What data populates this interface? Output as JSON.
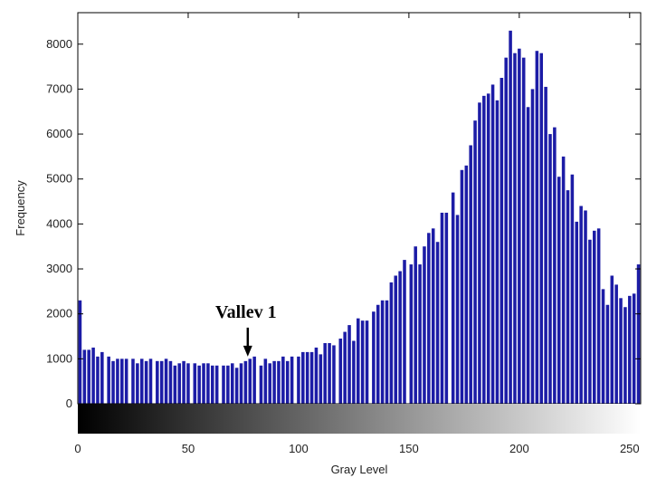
{
  "chart_data": {
    "type": "bar",
    "xlabel": "Gray Level",
    "ylabel": "Frequency",
    "xlim": [
      0,
      255
    ],
    "ylim": [
      0,
      8700
    ],
    "x_ticks": [
      0,
      50,
      100,
      150,
      200,
      250
    ],
    "x_tick_labels": [
      "0",
      "50",
      "100",
      "150",
      "200",
      "250"
    ],
    "y_ticks": [
      0,
      1000,
      2000,
      3000,
      4000,
      5000,
      6000,
      7000,
      8000
    ],
    "y_tick_labels": [
      "0",
      "1000",
      "2000",
      "3000",
      "4000",
      "5000",
      "6000",
      "7000",
      "8000"
    ],
    "grid": false,
    "bar_color": "#1c1ca6",
    "colorbar": "grayscale gradient from black (0) to white (255)",
    "annotation": {
      "text": "Vallev 1",
      "x": 77,
      "y": 1050
    },
    "points": [
      [
        1,
        2300
      ],
      [
        3,
        1200
      ],
      [
        5,
        1200
      ],
      [
        7,
        1250
      ],
      [
        9,
        1050
      ],
      [
        11,
        1150
      ],
      [
        14,
        1050
      ],
      [
        16,
        950
      ],
      [
        18,
        1000
      ],
      [
        20,
        1000
      ],
      [
        22,
        1000
      ],
      [
        25,
        1000
      ],
      [
        27,
        900
      ],
      [
        29,
        1000
      ],
      [
        31,
        950
      ],
      [
        33,
        1000
      ],
      [
        36,
        950
      ],
      [
        38,
        950
      ],
      [
        40,
        1000
      ],
      [
        42,
        950
      ],
      [
        44,
        850
      ],
      [
        46,
        900
      ],
      [
        48,
        950
      ],
      [
        50,
        900
      ],
      [
        53,
        900
      ],
      [
        55,
        850
      ],
      [
        57,
        900
      ],
      [
        59,
        900
      ],
      [
        61,
        850
      ],
      [
        63,
        850
      ],
      [
        66,
        850
      ],
      [
        68,
        850
      ],
      [
        70,
        900
      ],
      [
        72,
        800
      ],
      [
        74,
        900
      ],
      [
        76,
        950
      ],
      [
        78,
        1000
      ],
      [
        80,
        1050
      ],
      [
        83,
        850
      ],
      [
        85,
        1000
      ],
      [
        87,
        900
      ],
      [
        89,
        950
      ],
      [
        91,
        950
      ],
      [
        93,
        1050
      ],
      [
        95,
        950
      ],
      [
        97,
        1050
      ],
      [
        100,
        1050
      ],
      [
        102,
        1150
      ],
      [
        104,
        1150
      ],
      [
        106,
        1150
      ],
      [
        108,
        1250
      ],
      [
        110,
        1100
      ],
      [
        112,
        1350
      ],
      [
        114,
        1350
      ],
      [
        116,
        1300
      ],
      [
        119,
        1450
      ],
      [
        121,
        1600
      ],
      [
        123,
        1750
      ],
      [
        125,
        1400
      ],
      [
        127,
        1900
      ],
      [
        129,
        1850
      ],
      [
        131,
        1850
      ],
      [
        134,
        2050
      ],
      [
        136,
        2200
      ],
      [
        138,
        2300
      ],
      [
        140,
        2300
      ],
      [
        142,
        2700
      ],
      [
        144,
        2850
      ],
      [
        146,
        2950
      ],
      [
        148,
        3200
      ],
      [
        151,
        3100
      ],
      [
        153,
        3500
      ],
      [
        155,
        3100
      ],
      [
        157,
        3500
      ],
      [
        159,
        3800
      ],
      [
        161,
        3900
      ],
      [
        163,
        3600
      ],
      [
        165,
        4250
      ],
      [
        167,
        4250
      ],
      [
        170,
        4700
      ],
      [
        172,
        4200
      ],
      [
        174,
        5200
      ],
      [
        176,
        5300
      ],
      [
        178,
        5750
      ],
      [
        180,
        6300
      ],
      [
        182,
        6700
      ],
      [
        184,
        6850
      ],
      [
        186,
        6900
      ],
      [
        188,
        7100
      ],
      [
        190,
        6750
      ],
      [
        192,
        7250
      ],
      [
        194,
        7700
      ],
      [
        196,
        8300
      ],
      [
        198,
        7800
      ],
      [
        200,
        7900
      ],
      [
        202,
        7700
      ],
      [
        204,
        6600
      ],
      [
        206,
        7000
      ],
      [
        208,
        7850
      ],
      [
        210,
        7800
      ],
      [
        212,
        7050
      ],
      [
        214,
        6000
      ],
      [
        216,
        6150
      ],
      [
        218,
        5050
      ],
      [
        220,
        5500
      ],
      [
        222,
        4750
      ],
      [
        224,
        5100
      ],
      [
        226,
        4050
      ],
      [
        228,
        4400
      ],
      [
        230,
        4300
      ],
      [
        232,
        3650
      ],
      [
        234,
        3850
      ],
      [
        236,
        3900
      ],
      [
        238,
        2550
      ],
      [
        240,
        2200
      ],
      [
        242,
        2850
      ],
      [
        244,
        2650
      ],
      [
        246,
        2350
      ],
      [
        248,
        2150
      ],
      [
        250,
        2400
      ],
      [
        252,
        2450
      ],
      [
        254,
        3100
      ]
    ]
  }
}
